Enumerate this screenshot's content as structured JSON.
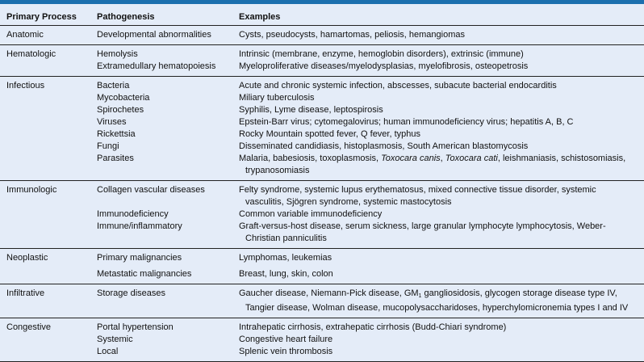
{
  "colors": {
    "accent_bar": "#1b6fae",
    "background": "#e4ecf8"
  },
  "headers": [
    "Primary Process",
    "Pathogenesis",
    "Examples"
  ],
  "groups": [
    {
      "process": "Anatomic",
      "rows": [
        {
          "pathogenesis": "Developmental abnormalities",
          "examples": [
            "Cysts, pseudocysts, hamartomas, peliosis, hemangiomas"
          ]
        }
      ]
    },
    {
      "process": "Hematologic",
      "rows": [
        {
          "pathogenesis": "Hemolysis",
          "examples": [
            "Intrinsic (membrane, enzyme, hemoglobin disorders), extrinsic (immune)"
          ]
        },
        {
          "pathogenesis": "Extramedullary hematopoiesis",
          "examples": [
            "Myeloproliferative diseases/myelodysplasias, myelofibrosis, osteopetrosis"
          ]
        }
      ]
    },
    {
      "process": "Infectious",
      "rows": [
        {
          "pathogenesis": "Bacteria",
          "examples": [
            "Acute and chronic systemic infection, abscesses, subacute bacterial endocarditis"
          ]
        },
        {
          "pathogenesis": "Mycobacteria",
          "examples": [
            "Miliary tuberculosis"
          ]
        },
        {
          "pathogenesis": "Spirochetes",
          "examples": [
            "Syphilis, Lyme disease, leptospirosis"
          ]
        },
        {
          "pathogenesis": "Viruses",
          "examples": [
            "Epstein-Barr virus; cytomegalovirus; human immunodeficiency virus; hepatitis A, B, C"
          ]
        },
        {
          "pathogenesis": "Rickettsia",
          "examples": [
            "Rocky Mountain spotted fever, Q fever, typhus"
          ]
        },
        {
          "pathogenesis": "Fungi",
          "examples": [
            "Disseminated candidiasis, histoplasmosis, South American blastomycosis"
          ]
        },
        {
          "pathogenesis": "Parasites",
          "examples": [
            "Malaria, babesiosis, toxoplasmosis, ",
            "Toxocara canis",
            ", ",
            "Toxocara cati",
            ", leishmaniasis, schistosomiasis,",
            "trypanosomiasis"
          ]
        }
      ]
    },
    {
      "process": "Immunologic",
      "rows": [
        {
          "pathogenesis": "Collagen vascular diseases",
          "examples": [
            "Felty syndrome, systemic lupus erythematosus, mixed connective tissue disorder, systemic",
            "vasculitis, Sjögren syndrome, systemic mastocytosis"
          ]
        },
        {
          "pathogenesis": "Immunodeficiency",
          "examples": [
            "Common variable immunodeficiency"
          ]
        },
        {
          "pathogenesis": "Immune/inflammatory",
          "examples": [
            "Graft-versus-host disease, serum sickness, large granular lymphocyte lymphocytosis, Weber-",
            "Christian panniculitis"
          ]
        }
      ]
    },
    {
      "process": "Neoplastic",
      "rows": [
        {
          "pathogenesis": "Primary malignancies",
          "examples": [
            "Lymphomas, leukemias"
          ]
        },
        {
          "pathogenesis": "Metastatic malignancies",
          "examples": [
            "Breast, lung, skin, colon"
          ]
        }
      ]
    },
    {
      "process": "Infiltrative",
      "rows": [
        {
          "pathogenesis": "Storage diseases",
          "examples": [
            "Gaucher disease, Niemann-Pick disease, GM",
            "1",
            " gangliosidosis, glycogen storage disease type IV,",
            "Tangier disease, Wolman disease, mucopolysaccharidoses, hyperchylomicronemia types I and IV"
          ]
        }
      ]
    },
    {
      "process": "Congestive",
      "rows": [
        {
          "pathogenesis": "Portal hypertension",
          "examples": [
            "Intrahepatic cirrhosis, extrahepatic cirrhosis (Budd-Chiari syndrome)"
          ]
        },
        {
          "pathogenesis": "Systemic",
          "examples": [
            "Congestive heart failure"
          ]
        },
        {
          "pathogenesis": "Local",
          "examples": [
            "Splenic vein thrombosis"
          ]
        }
      ]
    }
  ]
}
